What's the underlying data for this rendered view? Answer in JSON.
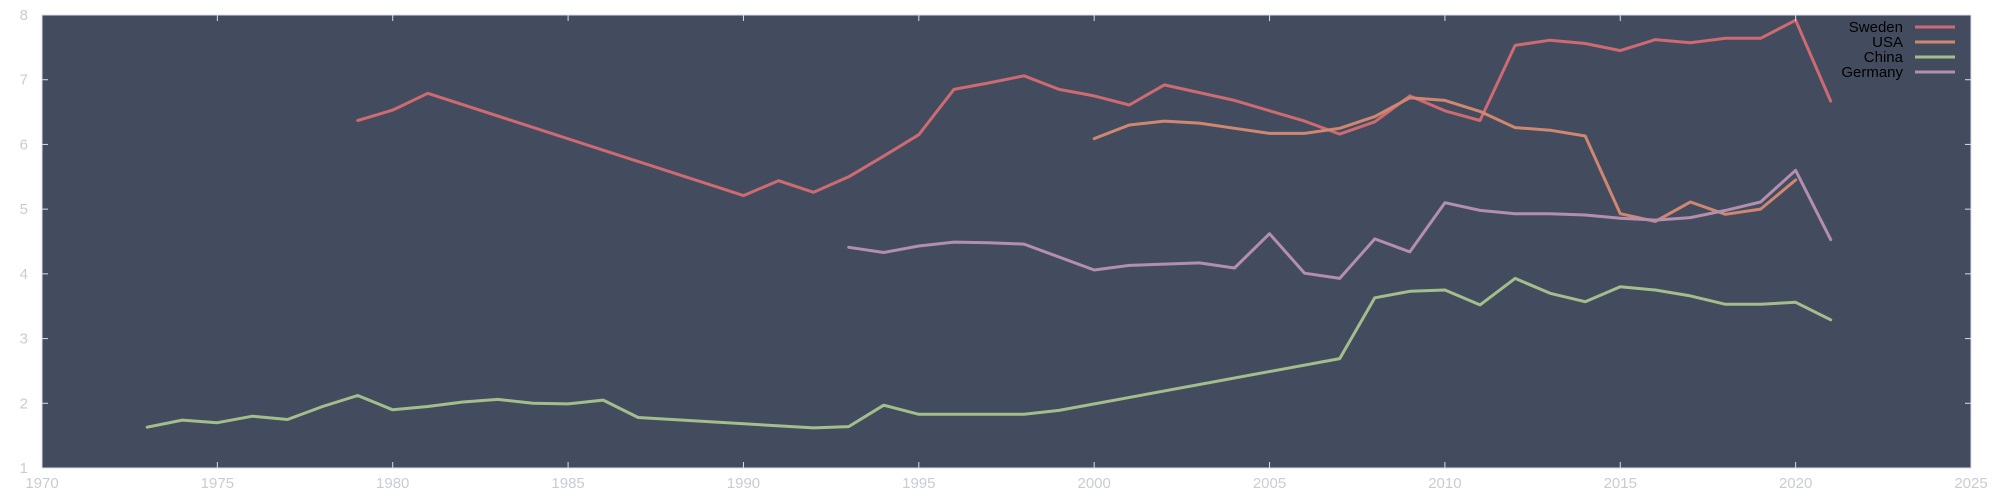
{
  "chart_data": {
    "type": "line",
    "title": "",
    "xlabel": "",
    "ylabel": "",
    "xlim": [
      1970,
      2025
    ],
    "ylim": [
      1,
      8
    ],
    "x_ticks": [
      1970,
      1975,
      1980,
      1985,
      1990,
      1995,
      2000,
      2005,
      2010,
      2015,
      2020,
      2025
    ],
    "y_ticks": [
      1,
      2,
      3,
      4,
      5,
      6,
      7,
      8
    ],
    "grid": false,
    "legend_position": "top-right",
    "colors": {
      "background": "#434c5e",
      "axis": "#d8dee9"
    },
    "series": [
      {
        "name": "Sweden",
        "color": "#cd6a72",
        "points": [
          [
            1979,
            6.37
          ],
          [
            1980,
            6.53
          ],
          [
            1981,
            6.79
          ],
          [
            1990,
            5.21
          ],
          [
            1991,
            5.44
          ],
          [
            1992,
            5.26
          ],
          [
            1993,
            5.5
          ],
          [
            1994,
            5.82
          ],
          [
            1995,
            6.15
          ],
          [
            1996,
            6.85
          ],
          [
            1997,
            6.95
          ],
          [
            1998,
            7.06
          ],
          [
            1999,
            6.85
          ],
          [
            2000,
            6.75
          ],
          [
            2001,
            6.61
          ],
          [
            2002,
            6.92
          ],
          [
            2004,
            6.68
          ],
          [
            2006,
            6.36
          ],
          [
            2007,
            6.16
          ],
          [
            2008,
            6.35
          ],
          [
            2009,
            6.75
          ],
          [
            2010,
            6.52
          ],
          [
            2011,
            6.37
          ],
          [
            2012,
            7.53
          ],
          [
            2013,
            7.61
          ],
          [
            2014,
            7.56
          ],
          [
            2015,
            7.45
          ],
          [
            2016,
            7.62
          ],
          [
            2017,
            7.57
          ],
          [
            2018,
            7.64
          ],
          [
            2019,
            7.64
          ],
          [
            2020,
            7.92
          ],
          [
            2021,
            6.67
          ]
        ]
      },
      {
        "name": "USA",
        "color": "#d08770",
        "points": [
          [
            2000,
            6.09
          ],
          [
            2001,
            6.3
          ],
          [
            2002,
            6.36
          ],
          [
            2003,
            6.33
          ],
          [
            2004,
            6.25
          ],
          [
            2005,
            6.17
          ],
          [
            2006,
            6.17
          ],
          [
            2007,
            6.25
          ],
          [
            2008,
            6.43
          ],
          [
            2009,
            6.72
          ],
          [
            2010,
            6.68
          ],
          [
            2011,
            6.51
          ],
          [
            2012,
            6.26
          ],
          [
            2013,
            6.22
          ],
          [
            2014,
            6.13
          ],
          [
            2015,
            4.93
          ],
          [
            2016,
            4.81
          ],
          [
            2017,
            5.11
          ],
          [
            2018,
            4.92
          ],
          [
            2019,
            5.0
          ],
          [
            2020,
            5.45
          ]
        ]
      },
      {
        "name": "China",
        "color": "#a3be8c",
        "points": [
          [
            1973,
            1.63
          ],
          [
            1974,
            1.74
          ],
          [
            1975,
            1.7
          ],
          [
            1976,
            1.8
          ],
          [
            1977,
            1.75
          ],
          [
            1978,
            1.95
          ],
          [
            1979,
            2.12
          ],
          [
            1980,
            1.9
          ],
          [
            1981,
            1.95
          ],
          [
            1982,
            2.02
          ],
          [
            1983,
            2.06
          ],
          [
            1984,
            2.0
          ],
          [
            1985,
            1.99
          ],
          [
            1986,
            2.05
          ],
          [
            1987,
            1.78
          ],
          [
            1992,
            1.62
          ],
          [
            1993,
            1.64
          ],
          [
            1994,
            1.97
          ],
          [
            1995,
            1.83
          ],
          [
            1998,
            1.83
          ],
          [
            1999,
            1.89
          ],
          [
            2007,
            2.69
          ],
          [
            2008,
            3.63
          ],
          [
            2009,
            3.73
          ],
          [
            2010,
            3.75
          ],
          [
            2011,
            3.52
          ],
          [
            2012,
            3.93
          ],
          [
            2013,
            3.7
          ],
          [
            2014,
            3.57
          ],
          [
            2015,
            3.8
          ],
          [
            2016,
            3.75
          ],
          [
            2017,
            3.66
          ],
          [
            2018,
            3.53
          ],
          [
            2019,
            3.53
          ],
          [
            2020,
            3.56
          ],
          [
            2021,
            3.29
          ]
        ]
      },
      {
        "name": "Germany",
        "color": "#b48ead",
        "points": [
          [
            1993,
            4.41
          ],
          [
            1994,
            4.33
          ],
          [
            1995,
            4.43
          ],
          [
            1996,
            4.49
          ],
          [
            1997,
            4.48
          ],
          [
            1998,
            4.46
          ],
          [
            2000,
            4.06
          ],
          [
            2001,
            4.13
          ],
          [
            2002,
            4.15
          ],
          [
            2003,
            4.17
          ],
          [
            2004,
            4.09
          ],
          [
            2005,
            4.62
          ],
          [
            2006,
            4.01
          ],
          [
            2007,
            3.93
          ],
          [
            2008,
            4.54
          ],
          [
            2009,
            4.34
          ],
          [
            2010,
            5.1
          ],
          [
            2011,
            4.98
          ],
          [
            2012,
            4.93
          ],
          [
            2013,
            4.93
          ],
          [
            2014,
            4.91
          ],
          [
            2015,
            4.86
          ],
          [
            2016,
            4.83
          ],
          [
            2017,
            4.87
          ],
          [
            2018,
            4.98
          ],
          [
            2019,
            5.11
          ],
          [
            2020,
            5.6
          ],
          [
            2021,
            4.53
          ]
        ]
      }
    ]
  }
}
